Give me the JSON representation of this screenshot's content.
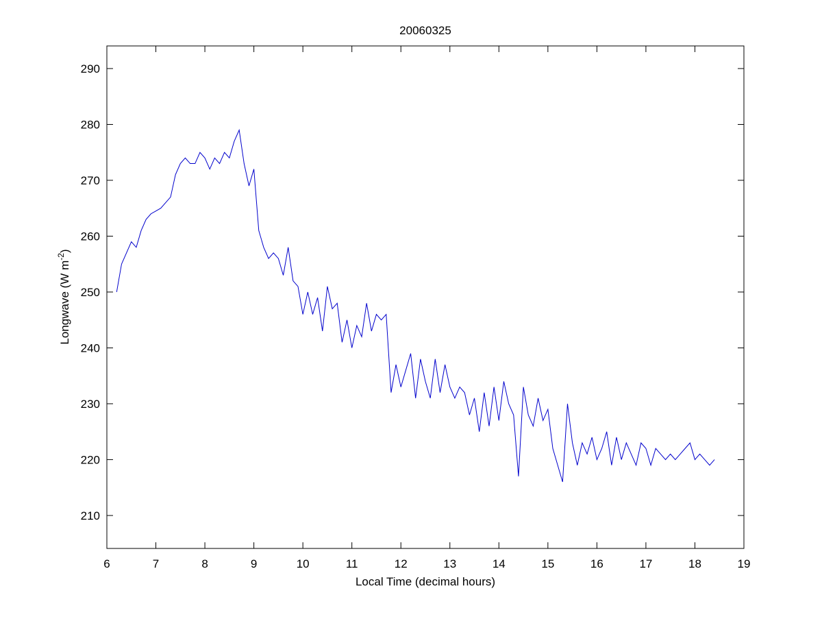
{
  "chart_data": {
    "type": "line",
    "title": "20060325",
    "xlabel": "Local Time (decimal hours)",
    "ylabel": [
      "Longwave (W m",
      "-2",
      ")"
    ],
    "xlim": [
      6,
      19
    ],
    "ylim": [
      204.1,
      294.05
    ],
    "xticks": [
      6,
      7,
      8,
      9,
      10,
      11,
      12,
      13,
      14,
      15,
      16,
      17,
      18,
      19
    ],
    "yticks": [
      210,
      220,
      230,
      240,
      250,
      260,
      270,
      280,
      290
    ],
    "grid": false,
    "x": [
      6.2,
      6.3,
      6.4,
      6.5,
      6.6,
      6.7,
      6.8,
      6.9,
      7.0,
      7.1,
      7.2,
      7.3,
      7.4,
      7.5,
      7.6,
      7.7,
      7.8,
      7.9,
      8.0,
      8.1,
      8.2,
      8.3,
      8.4,
      8.5,
      8.6,
      8.7,
      8.8,
      8.9,
      9.0,
      9.1,
      9.2,
      9.3,
      9.4,
      9.5,
      9.6,
      9.7,
      9.8,
      9.9,
      10.0,
      10.1,
      10.2,
      10.3,
      10.4,
      10.5,
      10.6,
      10.7,
      10.8,
      10.9,
      11.0,
      11.1,
      11.2,
      11.3,
      11.4,
      11.5,
      11.6,
      11.7,
      11.8,
      11.9,
      12.0,
      12.1,
      12.2,
      12.3,
      12.4,
      12.5,
      12.6,
      12.7,
      12.8,
      12.9,
      13.0,
      13.1,
      13.2,
      13.3,
      13.4,
      13.5,
      13.6,
      13.7,
      13.8,
      13.9,
      14.0,
      14.1,
      14.2,
      14.3,
      14.4,
      14.5,
      14.6,
      14.7,
      14.8,
      14.9,
      15.0,
      15.1,
      15.2,
      15.3,
      15.4,
      15.5,
      15.6,
      15.7,
      15.8,
      15.9,
      16.0,
      16.1,
      16.2,
      16.3,
      16.4,
      16.5,
      16.6,
      16.7,
      16.8,
      16.9,
      17.0,
      17.1,
      17.2,
      17.3,
      17.4,
      17.5,
      17.6,
      17.7,
      17.8,
      17.9,
      18.0,
      18.1,
      18.2,
      18.3,
      18.4
    ],
    "series": [
      {
        "color": "#0000cc",
        "values": [
          250,
          255,
          257,
          259,
          258,
          261,
          263,
          264,
          264.5,
          265,
          266,
          267,
          271,
          273,
          274,
          273,
          273,
          275,
          274,
          272,
          274,
          273,
          275,
          274,
          277,
          279,
          273,
          269,
          272,
          261,
          258,
          256,
          257,
          256,
          253,
          258,
          252,
          251,
          246,
          250,
          246,
          249,
          243,
          251,
          247,
          248,
          241,
          245,
          240,
          244,
          242,
          248,
          243,
          246,
          245,
          246,
          232,
          237,
          233,
          236,
          239,
          231,
          238,
          234,
          231,
          238,
          232,
          237,
          233,
          231,
          233,
          232,
          228,
          231,
          225,
          232,
          226,
          233,
          227,
          234,
          230,
          228,
          217,
          233,
          228,
          226,
          231,
          227,
          229,
          222,
          219,
          216,
          230,
          223,
          219,
          223,
          221,
          224,
          220,
          222,
          225,
          219,
          224,
          220,
          223,
          221,
          219,
          223,
          222,
          219,
          222,
          221,
          220,
          221,
          220,
          221,
          222,
          223,
          220,
          221,
          220,
          219,
          220
        ]
      }
    ]
  }
}
